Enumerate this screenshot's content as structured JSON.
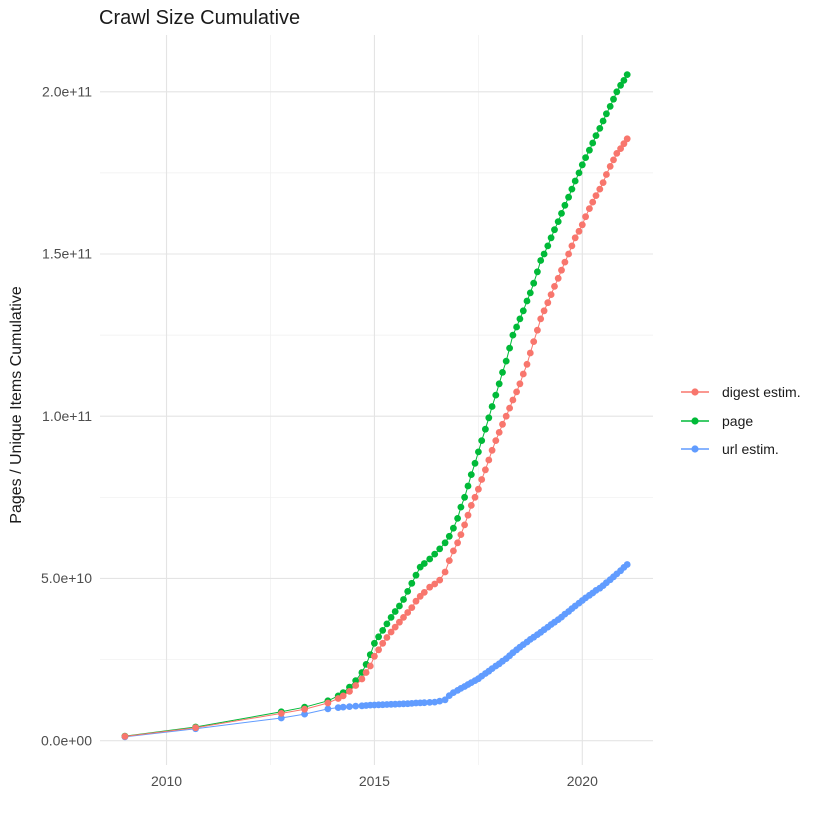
{
  "title": "Crawl Size Cumulative",
  "y_axis_title": "Pages / Unique Items Cumulative",
  "legend": {
    "items": [
      {
        "label": "digest estim.",
        "color": "#F8766D"
      },
      {
        "label": "page",
        "color": "#00BA38"
      },
      {
        "label": "url estim.",
        "color": "#619CFF"
      }
    ]
  },
  "colors": {
    "grid_major": "#E4E4E4",
    "grid_minor": "#EFEFEF",
    "tick_label": "#4D4D4D",
    "text": "#1A1A1A",
    "background": "#FFFFFF"
  },
  "chart_data": {
    "type": "scatter",
    "title": "Crawl Size Cumulative",
    "xlabel": "",
    "ylabel": "Pages / Unique Items Cumulative",
    "grid": true,
    "legend_position": "right",
    "y_value_unit": "1e9",
    "xlim": [
      2008.4,
      2021.7
    ],
    "ylim_e9": [
      -7.5,
      217.5
    ],
    "x_ticks": [
      {
        "label": "2010",
        "value": 2010
      },
      {
        "label": "2015",
        "value": 2015
      },
      {
        "label": "2020",
        "value": 2020
      }
    ],
    "x_minor": [
      2012.5,
      2017.5
    ],
    "y_ticks": [
      {
        "label": "0.0e+00",
        "value_e9": 0
      },
      {
        "label": "5.0e+10",
        "value_e9": 50
      },
      {
        "label": "1.0e+11",
        "value_e9": 100
      },
      {
        "label": "1.5e+11",
        "value_e9": 150
      },
      {
        "label": "2.0e+11",
        "value_e9": 200
      }
    ],
    "y_minor_e9": [
      25,
      75,
      125,
      175
    ],
    "x": [
      2009.0,
      2010.7,
      2012.76,
      2013.32,
      2013.88,
      2014.13,
      2014.25,
      2014.4,
      2014.55,
      2014.7,
      2014.8,
      2014.9,
      2015.0,
      2015.1,
      2015.2,
      2015.3,
      2015.4,
      2015.5,
      2015.6,
      2015.7,
      2015.8,
      2015.9,
      2016.0,
      2016.1,
      2016.2,
      2016.33,
      2016.45,
      2016.57,
      2016.7,
      2016.8,
      2016.9,
      2017.0,
      2017.08,
      2017.17,
      2017.25,
      2017.33,
      2017.42,
      2017.5,
      2017.58,
      2017.67,
      2017.75,
      2017.83,
      2017.92,
      2018.0,
      2018.08,
      2018.17,
      2018.25,
      2018.33,
      2018.42,
      2018.5,
      2018.58,
      2018.67,
      2018.75,
      2018.83,
      2018.92,
      2019.0,
      2019.08,
      2019.17,
      2019.25,
      2019.33,
      2019.42,
      2019.5,
      2019.58,
      2019.67,
      2019.75,
      2019.83,
      2019.92,
      2020.0,
      2020.08,
      2020.17,
      2020.25,
      2020.33,
      2020.42,
      2020.5,
      2020.58,
      2020.67,
      2020.75,
      2020.83,
      2020.92,
      2021.0,
      2021.08
    ],
    "series": [
      {
        "name": "digest estim.",
        "color": "#F8766D",
        "values_e9": [
          1.3,
          4.0,
          8.4,
          9.7,
          11.6,
          13.0,
          13.8,
          15.2,
          17,
          19,
          21,
          23,
          26,
          28,
          30,
          31.8,
          33.5,
          35,
          36.5,
          38,
          39.5,
          41,
          43,
          44.5,
          45.7,
          47.3,
          48.3,
          49.5,
          52,
          55.5,
          58.5,
          61,
          63.5,
          66.5,
          69.5,
          72.5,
          75,
          77.5,
          80.5,
          83.5,
          86.5,
          89.5,
          92.5,
          95,
          97.5,
          100,
          102.5,
          105,
          107.5,
          110,
          113,
          116,
          119.5,
          123,
          126.5,
          130,
          132.5,
          135,
          137.5,
          140,
          142.5,
          145,
          147.5,
          150,
          152.5,
          155,
          157,
          159,
          161.5,
          164,
          166,
          168,
          170,
          172,
          174.5,
          177,
          179,
          181,
          182.5,
          184,
          185.5
        ]
      },
      {
        "name": "page",
        "color": "#00BA38",
        "values_e9": [
          1.4,
          4.2,
          8.9,
          10.3,
          12.3,
          13.8,
          14.8,
          16.5,
          18.5,
          21,
          23.5,
          26.5,
          30,
          32,
          34,
          36,
          38,
          39.8,
          41.5,
          43.5,
          46,
          48.5,
          51,
          53.5,
          54.6,
          56,
          57.5,
          59.1,
          61,
          63,
          65.5,
          68.5,
          72,
          75,
          78.5,
          82,
          85.5,
          89,
          92.5,
          96,
          99.5,
          103,
          106.5,
          110,
          113.5,
          117,
          121,
          125,
          127.5,
          130,
          132.5,
          135.5,
          138,
          141,
          144.5,
          148,
          150,
          152.5,
          155,
          157.5,
          160,
          162.5,
          165,
          167.5,
          170,
          172.5,
          175,
          177.5,
          179.7,
          182,
          184.2,
          186.5,
          188.7,
          191,
          193.2,
          195.5,
          197.7,
          200,
          202,
          203.5,
          205.3
        ]
      },
      {
        "name": "url estim.",
        "color": "#619CFF",
        "values_e9": [
          1.2,
          3.7,
          7.0,
          8.2,
          9.8,
          10.2,
          10.35,
          10.5,
          10.65,
          10.75,
          10.85,
          10.95,
          11.0,
          11.05,
          11.1,
          11.15,
          11.2,
          11.25,
          11.3,
          11.35,
          11.4,
          11.5,
          11.6,
          11.65,
          11.7,
          11.8,
          11.9,
          12.2,
          12.6,
          13.9,
          14.8,
          15.5,
          16.1,
          16.7,
          17.3,
          17.9,
          18.5,
          19.1,
          19.9,
          20.7,
          21.4,
          22.2,
          23.0,
          23.7,
          24.5,
          25.3,
          26.2,
          27.1,
          28.0,
          28.8,
          29.6,
          30.4,
          31.2,
          31.9,
          32.7,
          33.4,
          34.2,
          35.0,
          35.8,
          36.5,
          37.3,
          38.1,
          39.0,
          39.8,
          40.7,
          41.5,
          42.4,
          43.2,
          44.0,
          44.8,
          45.5,
          46.3,
          47.0,
          47.8,
          48.7,
          49.6,
          50.5,
          51.4,
          52.4,
          53.4,
          54.3
        ]
      }
    ]
  }
}
